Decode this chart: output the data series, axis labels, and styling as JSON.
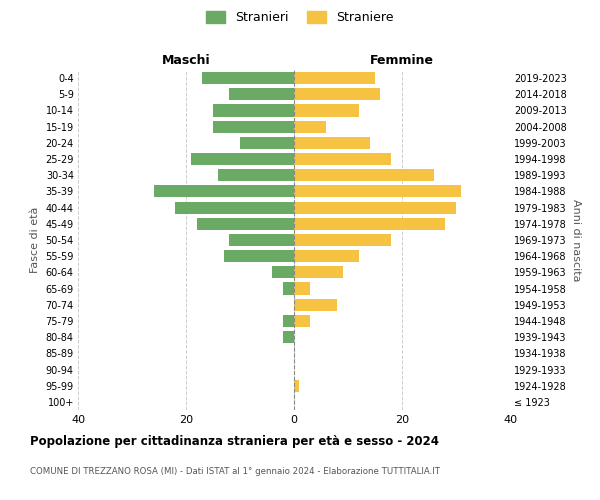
{
  "age_groups": [
    "100+",
    "95-99",
    "90-94",
    "85-89",
    "80-84",
    "75-79",
    "70-74",
    "65-69",
    "60-64",
    "55-59",
    "50-54",
    "45-49",
    "40-44",
    "35-39",
    "30-34",
    "25-29",
    "20-24",
    "15-19",
    "10-14",
    "5-9",
    "0-4"
  ],
  "birth_years": [
    "≤ 1923",
    "1924-1928",
    "1929-1933",
    "1934-1938",
    "1939-1943",
    "1944-1948",
    "1949-1953",
    "1954-1958",
    "1959-1963",
    "1964-1968",
    "1969-1973",
    "1974-1978",
    "1979-1983",
    "1984-1988",
    "1989-1993",
    "1994-1998",
    "1999-2003",
    "2004-2008",
    "2009-2013",
    "2014-2018",
    "2019-2023"
  ],
  "maschi": [
    0,
    0,
    0,
    0,
    2,
    2,
    0,
    2,
    4,
    13,
    12,
    18,
    22,
    26,
    14,
    19,
    10,
    15,
    15,
    12,
    17
  ],
  "femmine": [
    0,
    1,
    0,
    0,
    0,
    3,
    8,
    3,
    9,
    12,
    18,
    28,
    30,
    31,
    26,
    18,
    14,
    6,
    12,
    16,
    15
  ],
  "color_maschi": "#6aaa64",
  "color_femmine": "#f5c242",
  "title": "Popolazione per cittadinanza straniera per età e sesso - 2024",
  "subtitle": "COMUNE DI TREZZANO ROSA (MI) - Dati ISTAT al 1° gennaio 2024 - Elaborazione TUTTITALIA.IT",
  "ylabel_left": "Fasce di età",
  "ylabel_right": "Anni di nascita",
  "xlabel_left": "Maschi",
  "xlabel_right": "Femmine",
  "legend_maschi": "Stranieri",
  "legend_femmine": "Straniere",
  "xlim": 40,
  "background_color": "#ffffff",
  "grid_color": "#cccccc"
}
